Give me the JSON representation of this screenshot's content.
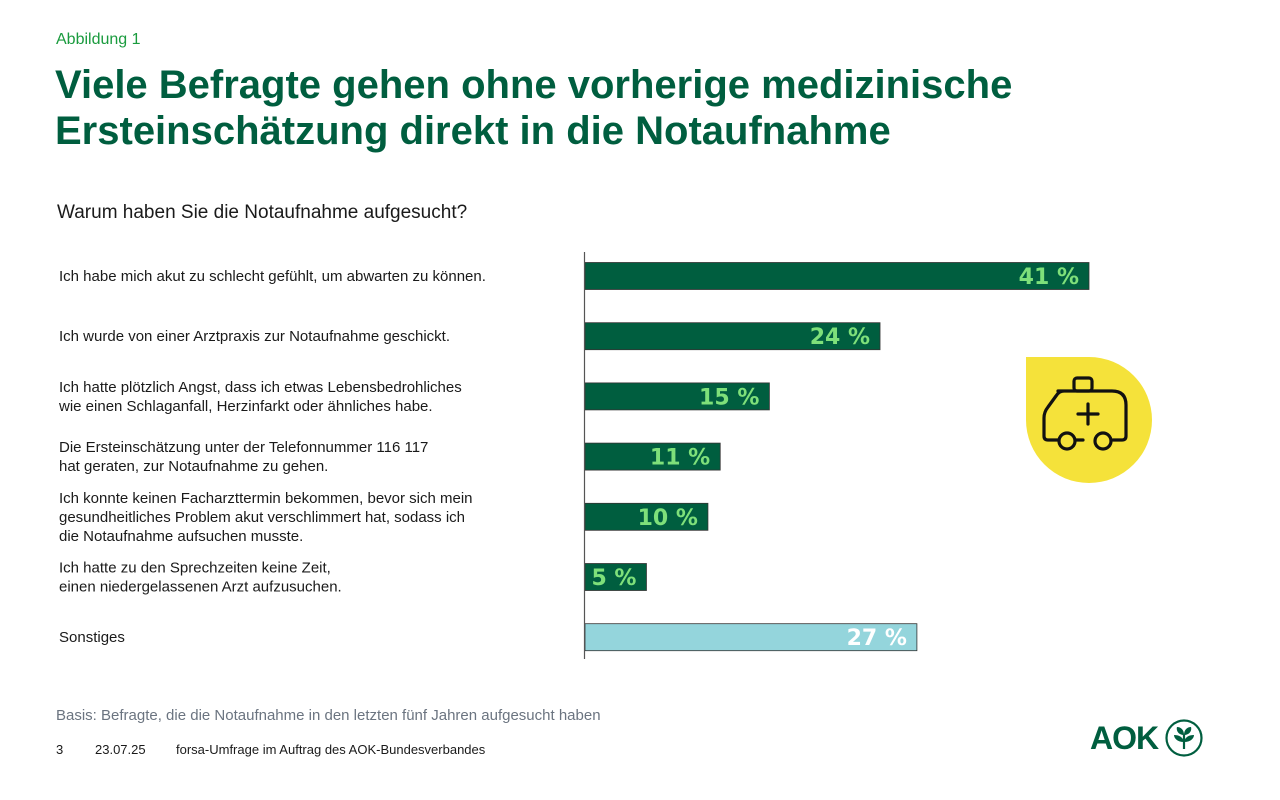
{
  "header": {
    "eyebrow": "Abbildung 1",
    "title": "Viele Befragte gehen ohne vorherige medizinische Ersteinschätzung direkt in die Notaufnahme"
  },
  "question": "Warum haben Sie die Notaufnahme aufgesucht?",
  "chart_data": {
    "type": "bar",
    "orientation": "horizontal",
    "categories": [
      [
        "Ich habe mich akut zu schlecht gefühlt, um abwarten zu können."
      ],
      [
        "Ich wurde von einer Arztpraxis zur Notaufnahme geschickt."
      ],
      [
        "Ich hatte plötzlich Angst, dass ich etwas Lebensbedrohliches",
        "wie einen Schlaganfall, Herzinfarkt oder ähnliches habe."
      ],
      [
        "Die Ersteinschätzung unter der Telefonnummer 116 117",
        "hat geraten, zur Notaufnahme zu gehen."
      ],
      [
        "Ich konnte keinen Facharzttermin bekommen, bevor sich mein",
        "gesundheitliches Problem akut verschlimmert hat, sodass ich",
        "die Notaufnahme aufsuchen musste."
      ],
      [
        "Ich hatte zu den Sprechzeiten keine Zeit,",
        "einen niedergelassenen Arzt aufzusuchen."
      ],
      [
        "Sonstiges"
      ]
    ],
    "values": [
      41,
      24,
      15,
      11,
      10,
      5,
      27
    ],
    "data_labels": [
      "41 %",
      "24 %",
      "15 %",
      "11 %",
      "10 %",
      "5 %",
      "27 %"
    ],
    "bar_colors": [
      "#005e3f",
      "#005e3f",
      "#005e3f",
      "#005e3f",
      "#005e3f",
      "#005e3f",
      "#94d5dc"
    ],
    "label_colors": [
      "#7ee07a",
      "#7ee07a",
      "#7ee07a",
      "#7ee07a",
      "#7ee07a",
      "#7ee07a",
      "#ffffff"
    ],
    "xlim": [
      0,
      41
    ],
    "grid": false
  },
  "illustration": {
    "icon": "ambulance-icon",
    "circle_color": "#f5e23a"
  },
  "footnote": "Basis: Befragte, die die Notaufnahme in den letzten fünf Jahren aufgesucht haben",
  "footer": {
    "page_number": "3",
    "date": "23.07.25",
    "source": "forsa-Umfrage im Auftrag des AOK-Bundesverbandes"
  },
  "logo": {
    "text": "AOK",
    "icon": "aok-tree-icon"
  },
  "colors": {
    "brand_green": "#005e3f",
    "accent_green": "#1a9b3e",
    "light_green": "#7ee07a",
    "light_blue": "#94d5dc",
    "yellow": "#f5e23a"
  }
}
